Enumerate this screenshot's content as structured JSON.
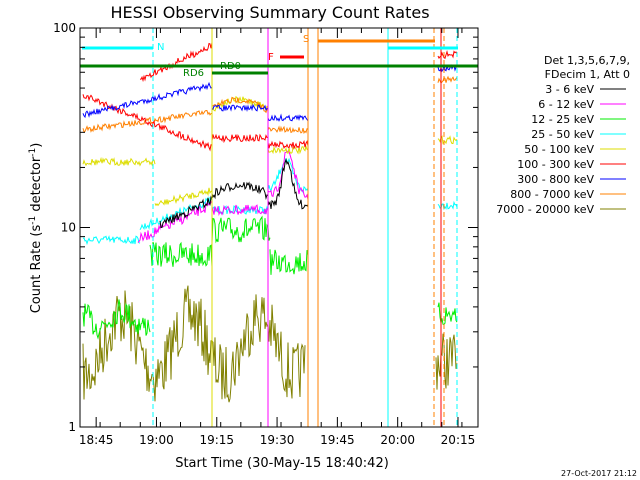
{
  "chart_data": {
    "type": "line",
    "title": "HESSI Observing Summary Count Rates",
    "xlabel": "Start Time (30-May-15 18:40:42)",
    "ylabel_main": "Count Rate (s",
    "ylabel_sup1": "-1",
    "ylabel_mid": " detector",
    "ylabel_sup2": "-1",
    "ylabel_end": ")",
    "yscale": "log",
    "ylim": [
      1,
      100
    ],
    "xlim_minutes": [
      18.683,
      20.333
    ],
    "xticks": [
      {
        "label": "18:45",
        "min": 18.75
      },
      {
        "label": "19:00",
        "min": 19.0
      },
      {
        "label": "19:15",
        "min": 19.25
      },
      {
        "label": "19:30",
        "min": 19.5
      },
      {
        "label": "19:45",
        "min": 19.75
      },
      {
        "label": "20:00",
        "min": 20.0
      },
      {
        "label": "20:15",
        "min": 20.25
      }
    ],
    "yticks": [
      {
        "label": "1",
        "value": 1
      },
      {
        "label": "10",
        "value": 10
      },
      {
        "label": "100",
        "value": 100
      }
    ],
    "legend_header": [
      "Det 1,3,5,6,7,9,",
      "FDecim 1, Att 0"
    ],
    "series": [
      {
        "name": "3 - 6 keV",
        "color": "#000000"
      },
      {
        "name": "6 - 12 keV",
        "color": "#ff00ff"
      },
      {
        "name": "12 - 25 keV",
        "color": "#00ee00"
      },
      {
        "name": "25 - 50 keV",
        "color": "#00ffff"
      },
      {
        "name": "50 - 100 keV",
        "color": "#dddd00"
      },
      {
        "name": "100 - 300 keV",
        "color": "#ff0000"
      },
      {
        "name": "300 - 800 keV",
        "color": "#0000ff"
      },
      {
        "name": "800 - 7000 keV",
        "color": "#ff8000"
      },
      {
        "name": "7000 - 20000 keV",
        "color": "#808000"
      }
    ],
    "annotations": [
      {
        "text": "N",
        "color": "#00ffff"
      },
      {
        "text": "RD0",
        "color": "#008000"
      },
      {
        "text": "RD6",
        "color": "#008000"
      },
      {
        "text": "F",
        "color": "#ff0000"
      },
      {
        "text": "S",
        "color": "#ff8000"
      }
    ],
    "timestamp": "27-Oct-2017 21:12"
  }
}
